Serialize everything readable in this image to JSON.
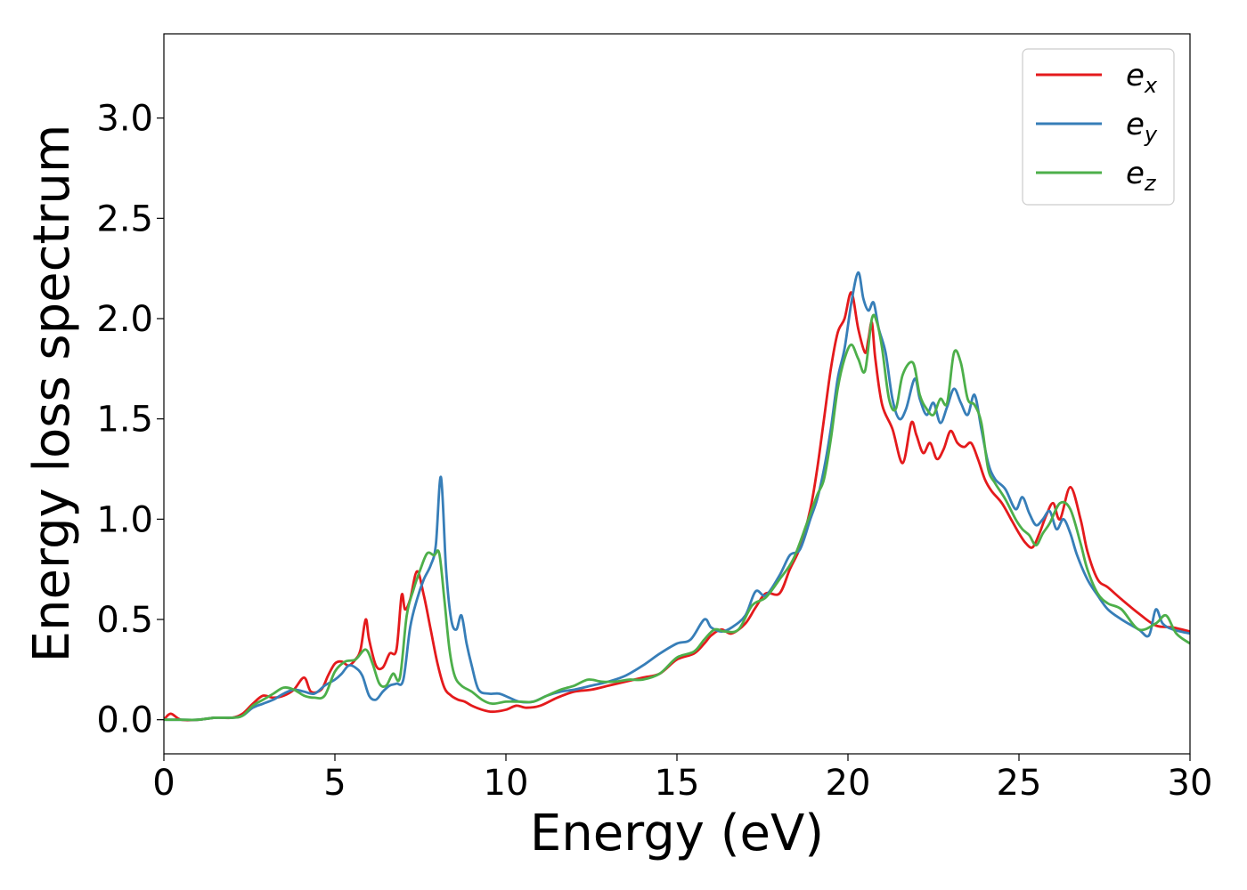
{
  "chart_data": {
    "type": "line",
    "xlabel": "Energy (eV)",
    "ylabel": "Energy loss spectrum",
    "xlim": [
      0,
      30
    ],
    "ylim": [
      -0.17,
      3.42
    ],
    "xticks": [
      0,
      5,
      10,
      15,
      20,
      25,
      30
    ],
    "yticks": [
      0.0,
      0.5,
      1.0,
      1.5,
      2.0,
      2.5,
      3.0
    ],
    "xtick_labels": [
      "0",
      "5",
      "10",
      "15",
      "20",
      "25",
      "30"
    ],
    "ytick_labels": [
      "0.0",
      "0.5",
      "1.0",
      "1.5",
      "2.0",
      "2.5",
      "3.0"
    ],
    "grid": false,
    "legend_position": "top-right",
    "series": [
      {
        "name": "e_x",
        "label_main": "e",
        "label_sub": "x",
        "color": "#e41a1c",
        "x": [
          0,
          0.2,
          0.5,
          1,
          1.5,
          2,
          2.3,
          2.6,
          2.9,
          3.2,
          3.5,
          3.8,
          4.1,
          4.3,
          4.6,
          4.8,
          5.0,
          5.2,
          5.4,
          5.6,
          5.75,
          5.9,
          6.0,
          6.2,
          6.4,
          6.6,
          6.8,
          6.95,
          7.05,
          7.2,
          7.4,
          7.6,
          7.8,
          8.0,
          8.2,
          8.4,
          8.6,
          8.8,
          9.0,
          9.3,
          9.6,
          10.0,
          10.3,
          10.6,
          11.0,
          11.5,
          12.0,
          12.5,
          13.0,
          13.5,
          14.0,
          14.5,
          15.0,
          15.5,
          15.8,
          16.0,
          16.3,
          16.6,
          17.0,
          17.3,
          17.6,
          18.0,
          18.3,
          18.6,
          18.9,
          19.1,
          19.3,
          19.5,
          19.7,
          19.9,
          20.1,
          20.3,
          20.5,
          20.6,
          20.7,
          20.8,
          21.0,
          21.3,
          21.6,
          21.85,
          22.0,
          22.2,
          22.4,
          22.6,
          22.8,
          23.0,
          23.2,
          23.4,
          23.6,
          23.8,
          24.0,
          24.2,
          24.5,
          24.8,
          25.0,
          25.2,
          25.4,
          25.6,
          25.8,
          26.0,
          26.2,
          26.5,
          26.8,
          27.0,
          27.3,
          27.6,
          28.0,
          28.5,
          29.0,
          29.5,
          30.0
        ],
        "y": [
          0.0,
          0.03,
          0.0,
          0.0,
          0.01,
          0.01,
          0.03,
          0.08,
          0.12,
          0.11,
          0.12,
          0.15,
          0.21,
          0.14,
          0.15,
          0.22,
          0.28,
          0.29,
          0.27,
          0.3,
          0.35,
          0.5,
          0.4,
          0.27,
          0.26,
          0.33,
          0.35,
          0.62,
          0.55,
          0.6,
          0.74,
          0.62,
          0.45,
          0.28,
          0.16,
          0.12,
          0.1,
          0.09,
          0.07,
          0.05,
          0.04,
          0.05,
          0.07,
          0.06,
          0.07,
          0.11,
          0.14,
          0.15,
          0.17,
          0.19,
          0.21,
          0.23,
          0.3,
          0.33,
          0.38,
          0.42,
          0.45,
          0.43,
          0.48,
          0.56,
          0.63,
          0.63,
          0.75,
          0.86,
          1.05,
          1.25,
          1.5,
          1.75,
          1.93,
          2.0,
          2.13,
          1.95,
          1.83,
          1.9,
          1.98,
          1.8,
          1.57,
          1.45,
          1.28,
          1.48,
          1.42,
          1.33,
          1.38,
          1.3,
          1.35,
          1.44,
          1.38,
          1.36,
          1.38,
          1.3,
          1.2,
          1.14,
          1.08,
          0.99,
          0.93,
          0.88,
          0.86,
          0.93,
          1.02,
          1.08,
          1.0,
          1.16,
          1.0,
          0.84,
          0.7,
          0.66,
          0.6,
          0.53,
          0.47,
          0.46,
          0.44
        ]
      },
      {
        "name": "e_y",
        "label_main": "e",
        "label_sub": "y",
        "color": "#377eb8",
        "x": [
          0,
          0.5,
          1,
          1.5,
          2,
          2.3,
          2.6,
          2.9,
          3.2,
          3.5,
          3.8,
          4.1,
          4.4,
          4.7,
          5.0,
          5.2,
          5.4,
          5.6,
          5.8,
          6.0,
          6.2,
          6.4,
          6.6,
          6.8,
          7.0,
          7.2,
          7.4,
          7.6,
          7.8,
          7.95,
          8.1,
          8.25,
          8.4,
          8.55,
          8.7,
          8.85,
          9.0,
          9.2,
          9.5,
          9.8,
          10.1,
          10.4,
          10.8,
          11.2,
          11.6,
          12.0,
          12.5,
          13.0,
          13.5,
          14.0,
          14.5,
          15.0,
          15.4,
          15.8,
          16.0,
          16.3,
          16.6,
          17.0,
          17.3,
          17.6,
          18.0,
          18.3,
          18.6,
          18.9,
          19.1,
          19.3,
          19.5,
          19.7,
          19.9,
          20.1,
          20.3,
          20.45,
          20.6,
          20.75,
          20.9,
          21.1,
          21.3,
          21.5,
          21.7,
          21.95,
          22.1,
          22.3,
          22.5,
          22.7,
          22.9,
          23.1,
          23.3,
          23.5,
          23.7,
          23.9,
          24.1,
          24.3,
          24.6,
          24.9,
          25.1,
          25.3,
          25.5,
          25.7,
          25.9,
          26.1,
          26.3,
          26.5,
          26.7,
          27.0,
          27.3,
          27.6,
          28.0,
          28.5,
          28.8,
          29.0,
          29.2,
          29.5,
          30.0
        ],
        "y": [
          0.0,
          0.0,
          0.0,
          0.01,
          0.01,
          0.02,
          0.06,
          0.08,
          0.1,
          0.13,
          0.15,
          0.14,
          0.13,
          0.17,
          0.2,
          0.23,
          0.27,
          0.26,
          0.22,
          0.12,
          0.1,
          0.14,
          0.17,
          0.18,
          0.2,
          0.46,
          0.6,
          0.7,
          0.77,
          0.87,
          1.21,
          0.75,
          0.5,
          0.45,
          0.52,
          0.38,
          0.27,
          0.15,
          0.13,
          0.13,
          0.11,
          0.09,
          0.09,
          0.12,
          0.14,
          0.15,
          0.17,
          0.19,
          0.22,
          0.27,
          0.33,
          0.38,
          0.4,
          0.5,
          0.46,
          0.44,
          0.46,
          0.52,
          0.64,
          0.62,
          0.72,
          0.82,
          0.85,
          1.0,
          1.1,
          1.25,
          1.45,
          1.7,
          1.85,
          2.08,
          2.23,
          2.1,
          2.04,
          2.08,
          1.95,
          1.83,
          1.6,
          1.5,
          1.55,
          1.7,
          1.6,
          1.52,
          1.58,
          1.48,
          1.56,
          1.65,
          1.58,
          1.52,
          1.62,
          1.45,
          1.28,
          1.2,
          1.15,
          1.05,
          1.11,
          1.03,
          0.97,
          1.0,
          1.04,
          0.95,
          1.0,
          0.93,
          0.82,
          0.7,
          0.62,
          0.55,
          0.5,
          0.45,
          0.42,
          0.55,
          0.48,
          0.45,
          0.43
        ]
      },
      {
        "name": "e_z",
        "label_main": "e",
        "label_sub": "z",
        "color": "#4daf4a",
        "x": [
          0,
          0.5,
          1,
          1.5,
          2,
          2.3,
          2.6,
          2.9,
          3.2,
          3.5,
          3.8,
          4.1,
          4.4,
          4.7,
          5.0,
          5.3,
          5.6,
          5.9,
          6.1,
          6.3,
          6.5,
          6.7,
          6.9,
          7.1,
          7.3,
          7.5,
          7.7,
          7.9,
          8.05,
          8.2,
          8.35,
          8.5,
          8.7,
          9.0,
          9.3,
          9.6,
          10.0,
          10.4,
          10.8,
          11.2,
          11.6,
          12.0,
          12.4,
          12.8,
          13.2,
          13.6,
          14.0,
          14.5,
          15.0,
          15.5,
          15.8,
          16.1,
          16.4,
          16.8,
          17.2,
          17.6,
          18.0,
          18.4,
          18.8,
          19.1,
          19.3,
          19.5,
          19.7,
          19.9,
          20.1,
          20.3,
          20.5,
          20.7,
          20.85,
          21.0,
          21.2,
          21.4,
          21.6,
          21.9,
          22.1,
          22.3,
          22.5,
          22.7,
          22.9,
          23.1,
          23.3,
          23.5,
          23.7,
          23.9,
          24.1,
          24.3,
          24.6,
          24.9,
          25.1,
          25.3,
          25.5,
          25.7,
          25.9,
          26.2,
          26.5,
          26.8,
          27.0,
          27.3,
          27.6,
          28.0,
          28.5,
          29.0,
          29.3,
          29.6,
          30.0
        ],
        "y": [
          0.0,
          0.0,
          0.0,
          0.01,
          0.01,
          0.02,
          0.07,
          0.1,
          0.13,
          0.16,
          0.15,
          0.12,
          0.11,
          0.12,
          0.24,
          0.29,
          0.3,
          0.35,
          0.28,
          0.18,
          0.17,
          0.23,
          0.21,
          0.52,
          0.65,
          0.75,
          0.83,
          0.82,
          0.83,
          0.6,
          0.35,
          0.22,
          0.17,
          0.14,
          0.1,
          0.08,
          0.09,
          0.09,
          0.09,
          0.12,
          0.15,
          0.17,
          0.2,
          0.19,
          0.19,
          0.2,
          0.2,
          0.23,
          0.31,
          0.34,
          0.4,
          0.45,
          0.44,
          0.45,
          0.57,
          0.61,
          0.7,
          0.8,
          0.98,
          1.12,
          1.2,
          1.4,
          1.65,
          1.8,
          1.87,
          1.8,
          1.74,
          2.0,
          1.98,
          1.85,
          1.6,
          1.55,
          1.72,
          1.78,
          1.62,
          1.55,
          1.52,
          1.6,
          1.58,
          1.83,
          1.78,
          1.6,
          1.57,
          1.48,
          1.25,
          1.18,
          1.1,
          1.0,
          0.95,
          0.92,
          0.87,
          0.93,
          0.98,
          1.08,
          1.05,
          0.88,
          0.75,
          0.63,
          0.58,
          0.55,
          0.45,
          0.48,
          0.52,
          0.43,
          0.38
        ]
      }
    ]
  }
}
